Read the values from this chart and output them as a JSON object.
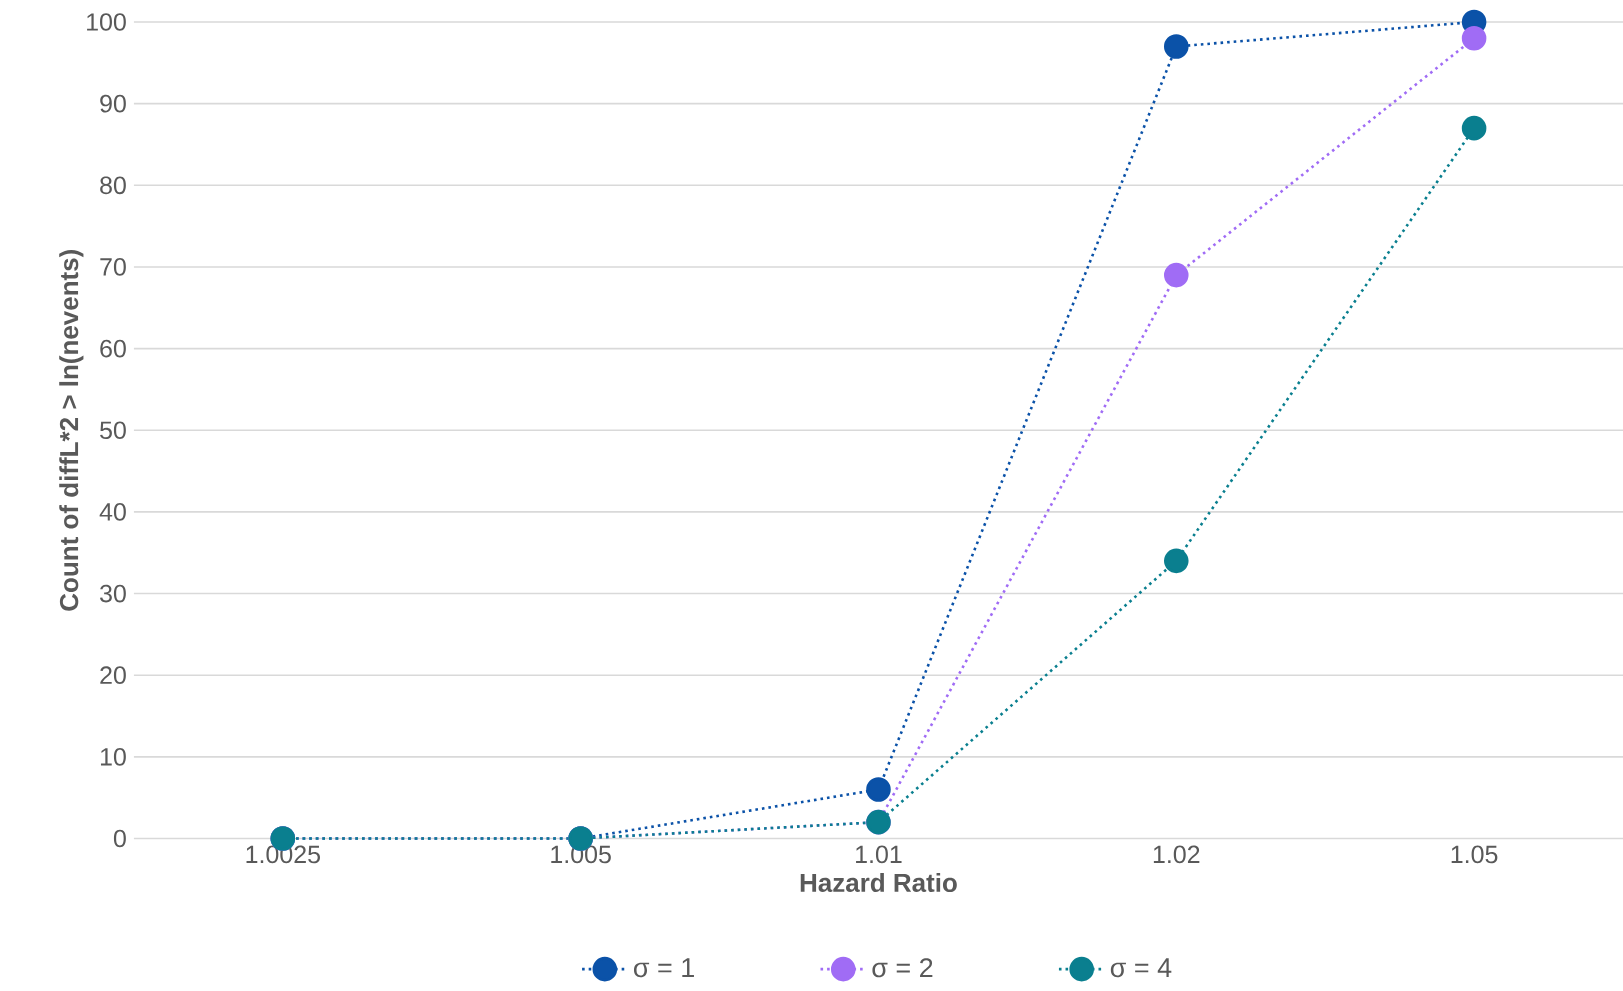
{
  "chart_data": {
    "type": "line",
    "xlabel": "Hazard Ratio",
    "ylabel": "Count of diffL*2 > ln(nevents)",
    "categories": [
      "1.0025",
      "1.005",
      "1.01",
      "1.02",
      "1.05"
    ],
    "series": [
      {
        "name": "σ = 1",
        "color": "#0b52a8",
        "values": [
          0,
          0,
          6,
          97,
          100
        ]
      },
      {
        "name": "σ = 2",
        "color": "#a06cf5",
        "values": [
          0,
          0,
          2,
          69,
          98
        ]
      },
      {
        "name": "σ = 4",
        "color": "#0a7f8f",
        "values": [
          0,
          0,
          2,
          34,
          87
        ]
      }
    ],
    "ylim": [
      0,
      100
    ],
    "yticks": [
      0,
      10,
      20,
      30,
      40,
      50,
      60,
      70,
      80,
      90,
      100
    ],
    "grid": "y",
    "legend": "bottom",
    "marker": "circle",
    "line_style": "dotted"
  }
}
